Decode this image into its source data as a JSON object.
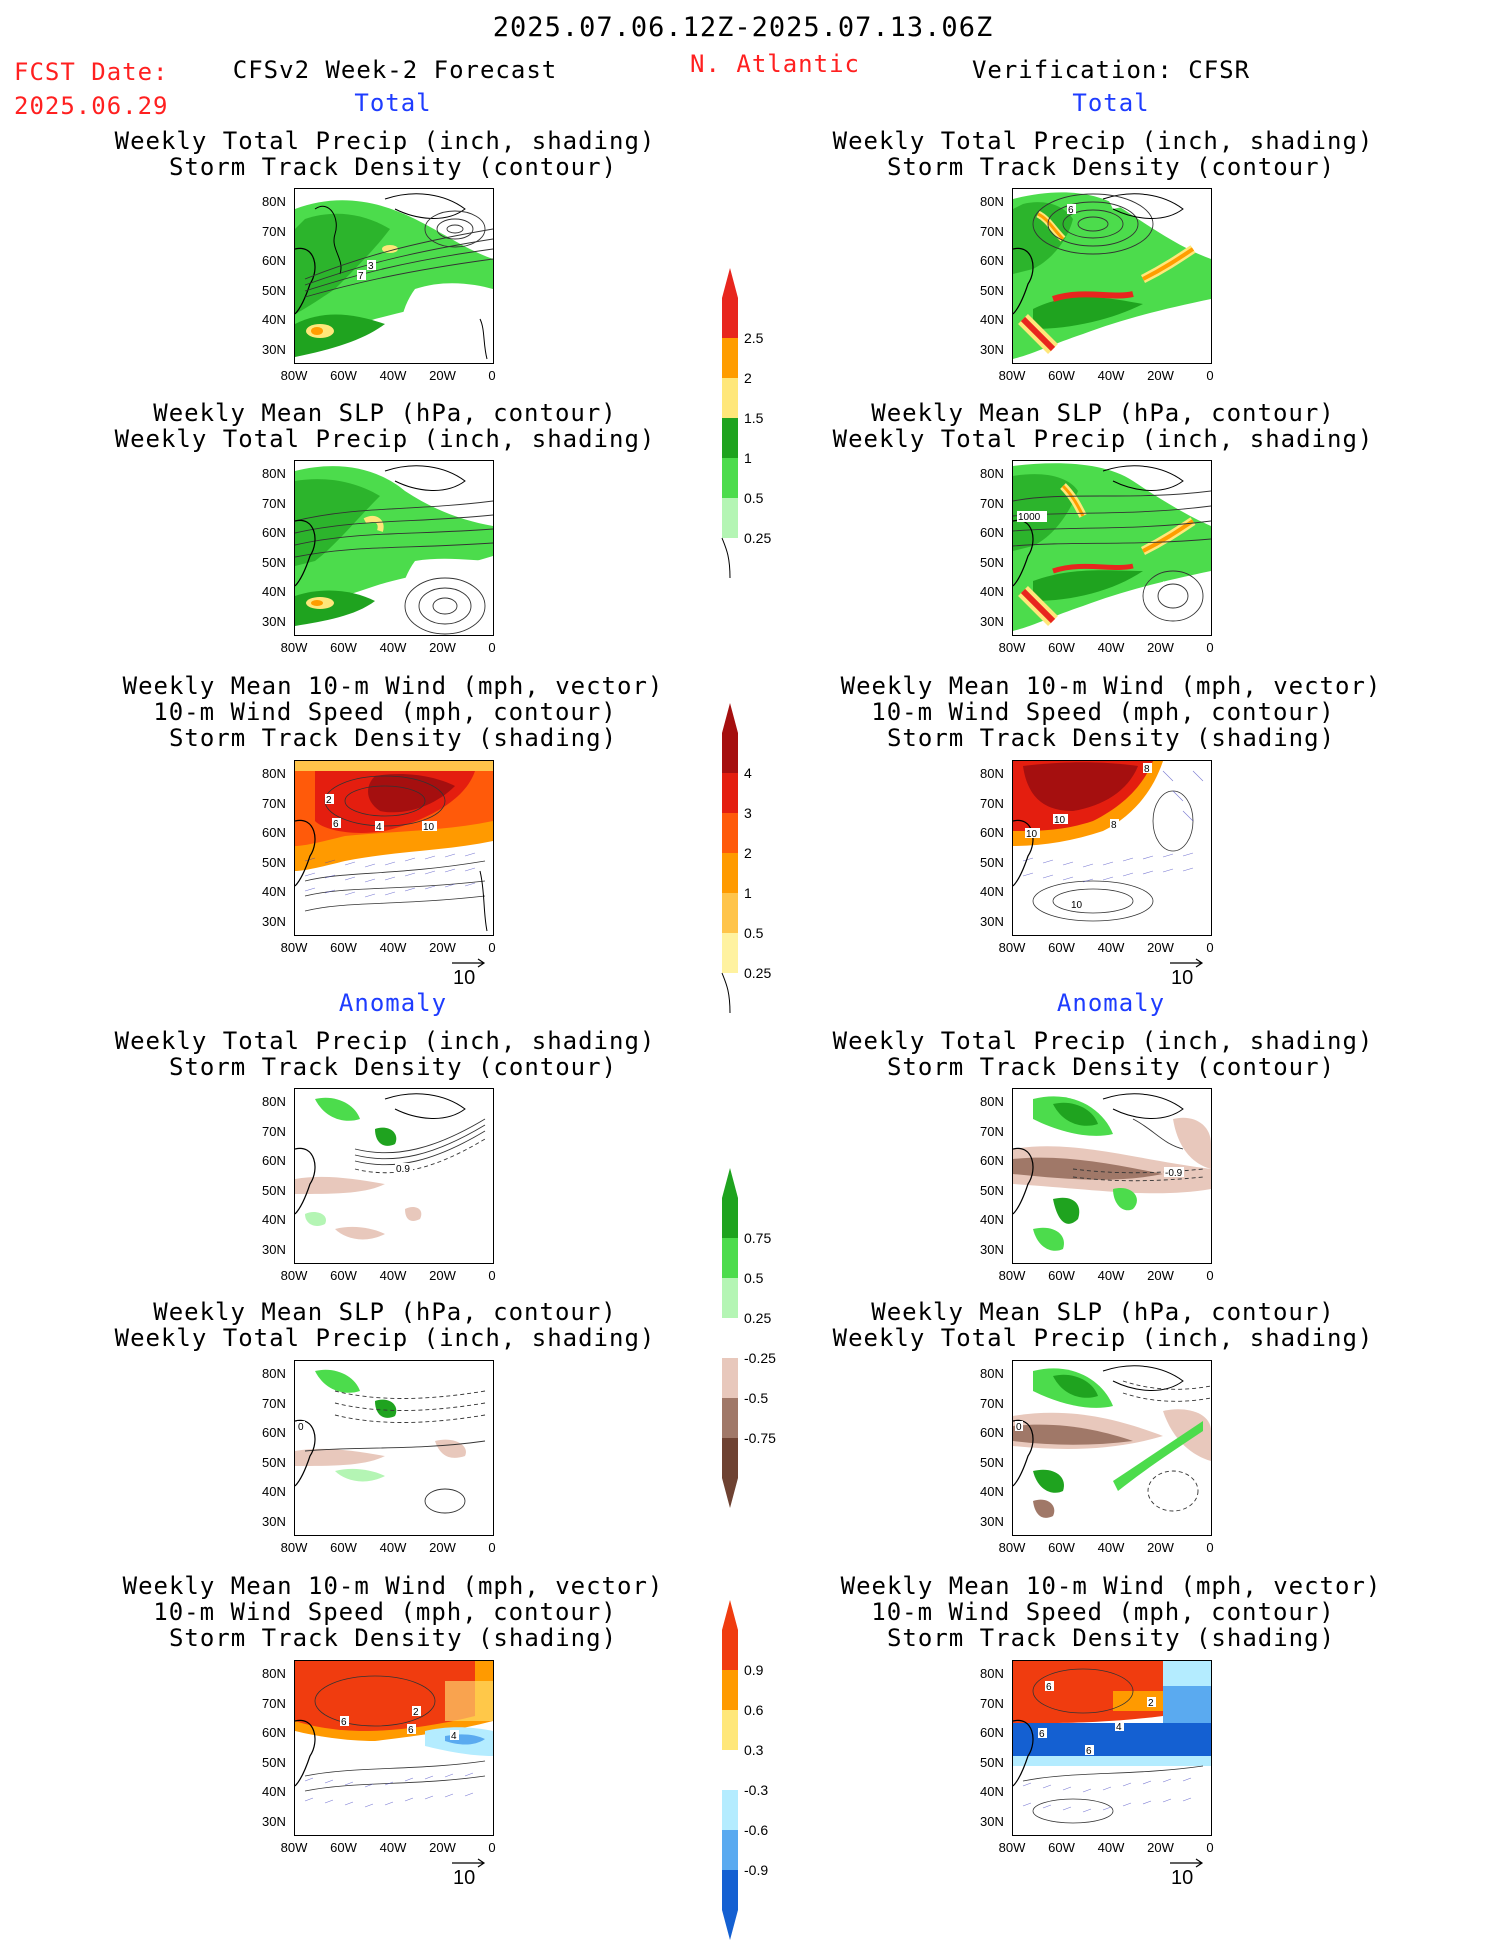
{
  "header": {
    "date_range": "2025.07.06.12Z-2025.07.13.06Z",
    "fcst_date_label": "FCST Date:",
    "fcst_date_value": "2025.06.29",
    "forecast_title": "CFSv2 Week-2 Forecast",
    "region": "N. Atlantic",
    "verification_title": "Verification: CFSR"
  },
  "sections": {
    "total": "Total",
    "anomaly": "Anomaly"
  },
  "panel_titles": {
    "precip_storm": [
      "Weekly Total Precip (inch, shading)",
      "Storm Track Density (contour)"
    ],
    "slp_precip": [
      "Weekly Mean SLP (hPa, contour)",
      "Weekly Total Precip (inch, shading)"
    ],
    "wind_storm": [
      "Weekly Mean 10-m Wind (mph, vector)",
      "10-m Wind Speed (mph, contour)",
      "Storm Track Density (shading)"
    ]
  },
  "axes": {
    "lat_ticks": [
      "80N",
      "70N",
      "60N",
      "50N",
      "40N",
      "30N"
    ],
    "lon_ticks": [
      "80W",
      "60W",
      "40W",
      "20W",
      "0"
    ]
  },
  "vector_ref": "10",
  "colorbars": {
    "precip_total": {
      "labels": [
        "2.5",
        "2",
        "1.5",
        "1",
        "0.5",
        "0.25"
      ],
      "colors": [
        "#e8261e",
        "#ff9d00",
        "#ffe77a",
        "#1fa31f",
        "#4cdc4c",
        "#b4f5b4"
      ]
    },
    "storm_total": {
      "labels": [
        "4",
        "3",
        "2",
        "1",
        "0.5",
        "0.25"
      ],
      "colors": [
        "#a50f0f",
        "#e41e0f",
        "#ff5a0a",
        "#ff9a00",
        "#ffc44a",
        "#fff2a0"
      ]
    },
    "precip_anom": {
      "labels": [
        "0.75",
        "0.5",
        "0.25",
        "-0.25",
        "-0.5",
        "-0.75"
      ],
      "colors": [
        "#1fa31f",
        "#4cdc4c",
        "#b4f5b4",
        "#ffffff",
        "#e8c8bc",
        "#a07868",
        "#6e4232"
      ]
    },
    "storm_anom": {
      "labels": [
        "0.9",
        "0.6",
        "0.3",
        "-0.3",
        "-0.6",
        "-0.9"
      ],
      "colors": [
        "#f03c0f",
        "#ff9a00",
        "#ffe77a",
        "#ffffff",
        "#b4ecff",
        "#5aaaf0",
        "#1460d2"
      ]
    }
  },
  "map_labels": {
    "fc_total_precip": [
      "3",
      "7"
    ],
    "vf_total_precip": [
      "6"
    ],
    "vf_total_slp": [
      "1000"
    ],
    "fc_total_wind": [
      "2",
      "6",
      "4",
      "10"
    ],
    "vf_total_wind": [
      "10",
      "8",
      "10",
      "10",
      "8"
    ],
    "fc_anom_precip": [
      "0.9"
    ],
    "vf_anom_precip": [
      "-0.9"
    ],
    "fc_anom_slp": [
      "0"
    ],
    "vf_anom_slp": [
      "0"
    ],
    "fc_anom_wind": [
      "2",
      "6",
      "6",
      "4"
    ],
    "vf_anom_wind": [
      "6",
      "2",
      "6",
      "4",
      "6"
    ]
  }
}
